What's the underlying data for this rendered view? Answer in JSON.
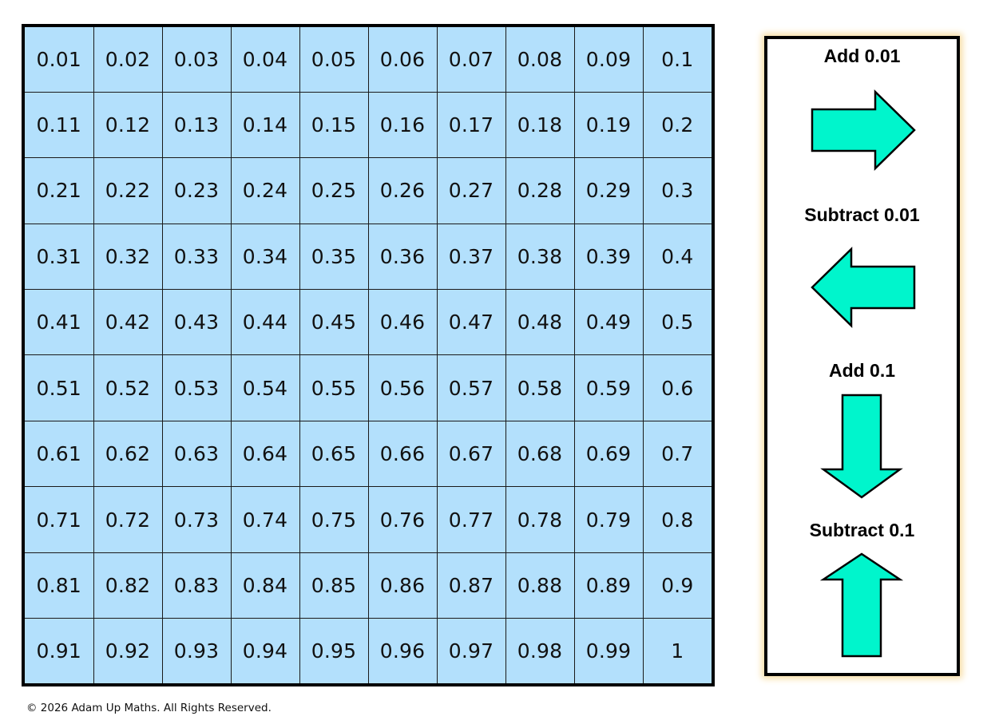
{
  "grid": {
    "rows": [
      [
        "0.01",
        "0.02",
        "0.03",
        "0.04",
        "0.05",
        "0.06",
        "0.07",
        "0.08",
        "0.09",
        "0.1"
      ],
      [
        "0.11",
        "0.12",
        "0.13",
        "0.14",
        "0.15",
        "0.16",
        "0.17",
        "0.18",
        "0.19",
        "0.2"
      ],
      [
        "0.21",
        "0.22",
        "0.23",
        "0.24",
        "0.25",
        "0.26",
        "0.27",
        "0.28",
        "0.29",
        "0.3"
      ],
      [
        "0.31",
        "0.32",
        "0.33",
        "0.34",
        "0.35",
        "0.36",
        "0.37",
        "0.38",
        "0.39",
        "0.4"
      ],
      [
        "0.41",
        "0.42",
        "0.43",
        "0.44",
        "0.45",
        "0.46",
        "0.47",
        "0.48",
        "0.49",
        "0.5"
      ],
      [
        "0.51",
        "0.52",
        "0.53",
        "0.54",
        "0.55",
        "0.56",
        "0.57",
        "0.58",
        "0.59",
        "0.6"
      ],
      [
        "0.61",
        "0.62",
        "0.63",
        "0.64",
        "0.65",
        "0.66",
        "0.67",
        "0.68",
        "0.69",
        "0.7"
      ],
      [
        "0.71",
        "0.72",
        "0.73",
        "0.74",
        "0.75",
        "0.76",
        "0.77",
        "0.78",
        "0.79",
        "0.8"
      ],
      [
        "0.81",
        "0.82",
        "0.83",
        "0.84",
        "0.85",
        "0.86",
        "0.87",
        "0.88",
        "0.89",
        "0.9"
      ],
      [
        "0.91",
        "0.92",
        "0.93",
        "0.94",
        "0.95",
        "0.96",
        "0.97",
        "0.98",
        "0.99",
        "1"
      ]
    ]
  },
  "key": [
    {
      "label": "Add 0.01",
      "icon": "arrow-right-icon"
    },
    {
      "label": "Subtract 0.01",
      "icon": "arrow-left-icon"
    },
    {
      "label": "Add 0.1",
      "icon": "arrow-down-icon"
    },
    {
      "label": "Subtract 0.1",
      "icon": "arrow-up-icon"
    }
  ],
  "colors": {
    "cell_fill": "#b3e0fc",
    "arrow_fill": "#00f5cc",
    "panel_glow": "#f7dca0"
  },
  "footer": {
    "copyright": "© 2026 Adam Up Maths. All Rights Reserved."
  }
}
